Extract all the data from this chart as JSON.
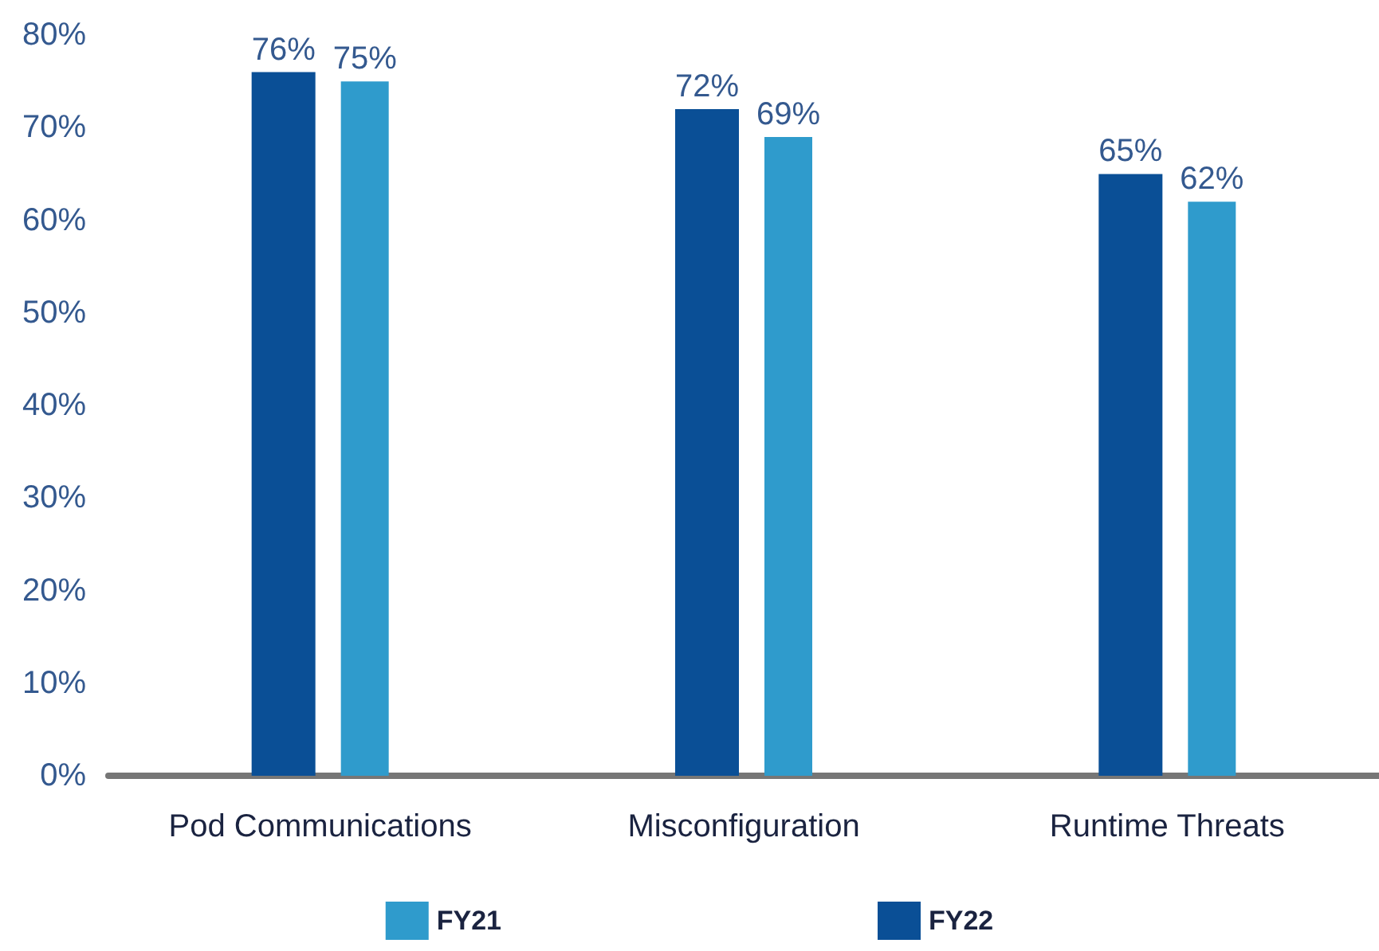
{
  "chart_data": {
    "type": "bar",
    "categories": [
      "Pod Communications",
      "Misconfiguration",
      "Runtime Threats"
    ],
    "series": [
      {
        "name": "FY22",
        "color": "#0a4f96",
        "values": [
          76,
          72,
          65
        ],
        "value_labels": [
          "76%",
          "72%",
          "65%"
        ]
      },
      {
        "name": "FY21",
        "color": "#2f9bcc",
        "values": [
          75,
          69,
          62
        ],
        "value_labels": [
          "75%",
          "69%",
          "62%"
        ]
      }
    ],
    "ylim": [
      0,
      80
    ],
    "yticks": [
      {
        "value": 0,
        "label": "0%"
      },
      {
        "value": 10,
        "label": "10%"
      },
      {
        "value": 20,
        "label": "20%"
      },
      {
        "value": 30,
        "label": "30%"
      },
      {
        "value": 40,
        "label": "40%"
      },
      {
        "value": 50,
        "label": "50%"
      },
      {
        "value": 60,
        "label": "60%"
      },
      {
        "value": 70,
        "label": "70%"
      },
      {
        "value": 80,
        "label": "80%"
      }
    ],
    "legend": "bottom"
  }
}
